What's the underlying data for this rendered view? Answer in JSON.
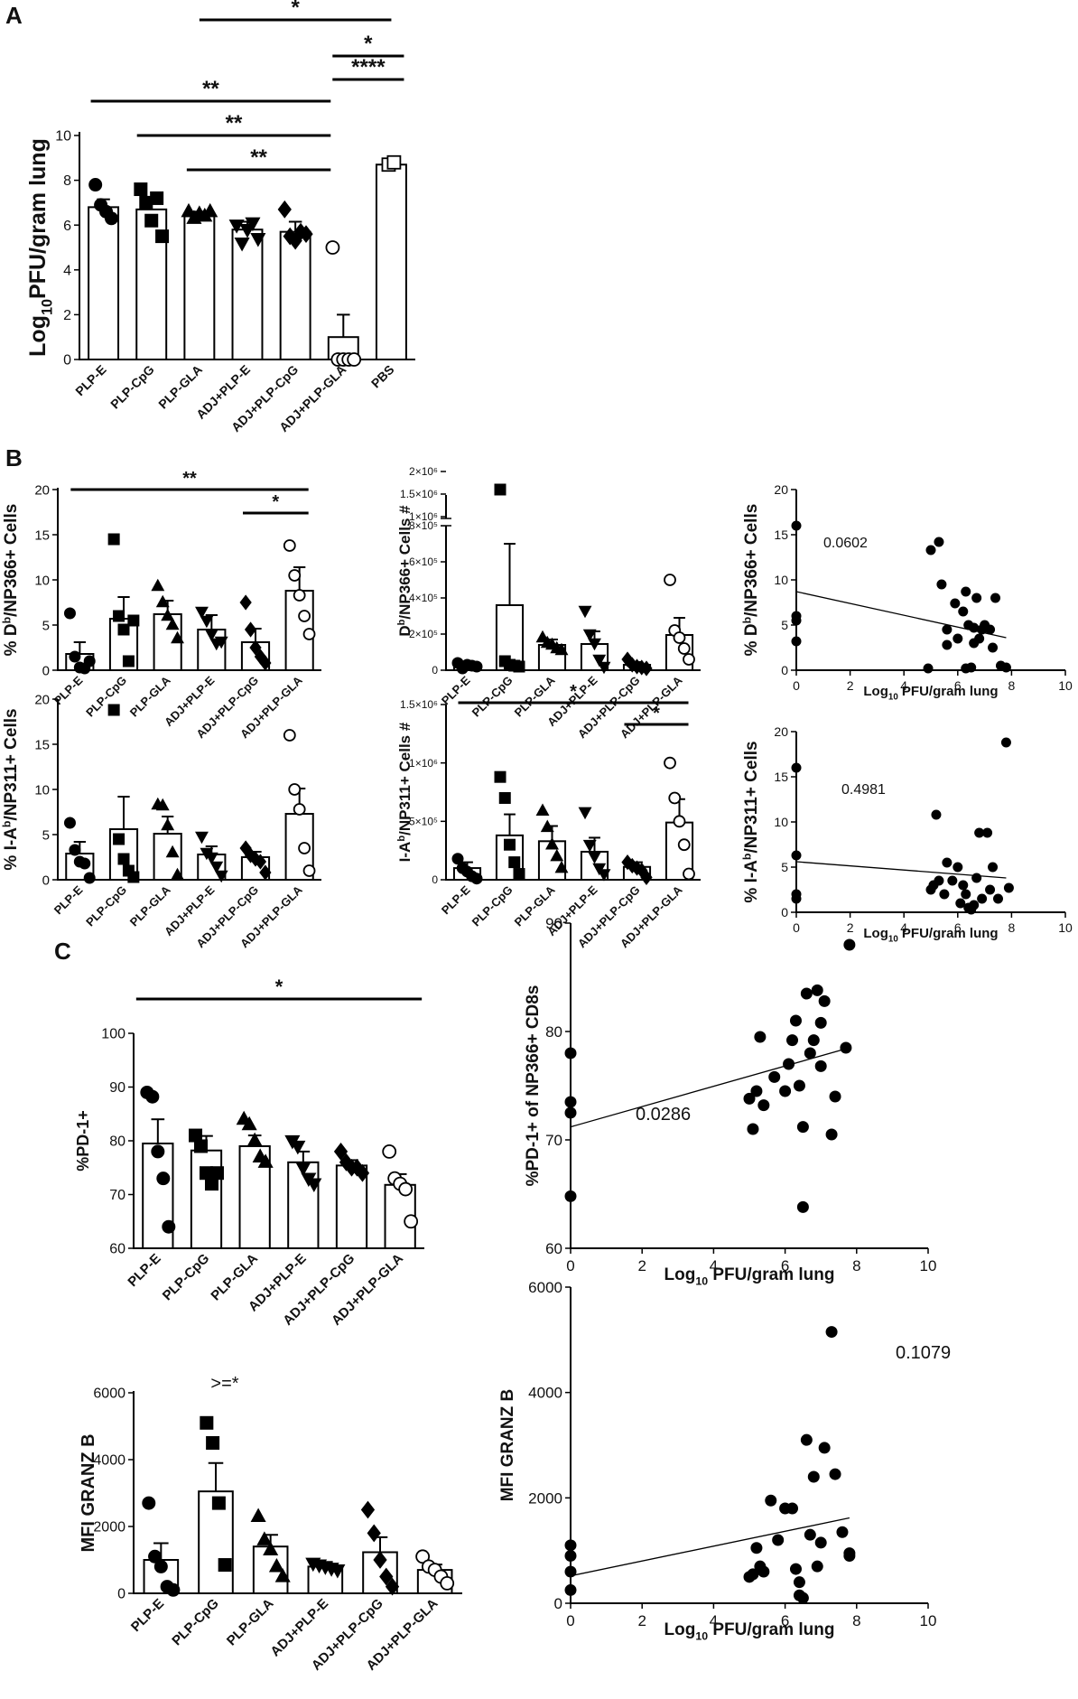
{
  "panel_labels": {
    "A": "A",
    "B": "B",
    "C": "C"
  },
  "chart_data": [
    {
      "id": "A",
      "type": "bar",
      "ylabel_main": "Log",
      "ylabel_sub": "10",
      "ylabel_tail": "PFU/gram lung",
      "ylim": [
        0,
        10
      ],
      "yticks": [
        0,
        2,
        4,
        6,
        8,
        10
      ],
      "categories": [
        "PLP-E",
        "PLP-CpG",
        "PLP-GLA",
        "ADJ+PLP-E",
        "ADJ+PLP-CpG",
        "ADJ+PLP-GLA",
        "PBS"
      ],
      "values": [
        6.8,
        6.7,
        6.4,
        5.8,
        5.7,
        1.0,
        8.7
      ],
      "sem": [
        0.35,
        0.5,
        0.2,
        0.35,
        0.45,
        1.0,
        0.15
      ],
      "marker": [
        "circle",
        "square",
        "triangle-up",
        "triangle-down",
        "diamond",
        "circle-open",
        "square-open"
      ],
      "points": [
        [
          7.8,
          6.9,
          6.6,
          6.3
        ],
        [
          7.6,
          7.0,
          6.2,
          7.2,
          5.5
        ],
        [
          6.6,
          6.3,
          6.5,
          6.4,
          6.6
        ],
        [
          6.0,
          5.2,
          5.8,
          6.1,
          5.4
        ],
        [
          6.7,
          5.5,
          5.3,
          5.7,
          5.6
        ],
        [
          5.0,
          0.0,
          0.0,
          0.0,
          0.0
        ],
        [
          8.7,
          8.8
        ]
      ],
      "significance": [
        {
          "from": 2,
          "to": 6,
          "label": "*"
        },
        {
          "from": 5,
          "to": 6,
          "label": "*"
        },
        {
          "from": 5,
          "to": 6,
          "label": "****"
        },
        {
          "from": 0,
          "to": 5,
          "label": "**"
        },
        {
          "from": 1,
          "to": 5,
          "label": "**"
        },
        {
          "from": 2,
          "to": 5,
          "label": "**"
        }
      ]
    },
    {
      "id": "B1",
      "type": "bar",
      "ylabel_main": "% D",
      "ylabel_sup": "b",
      "ylabel_tail": "/NP366+ Cells",
      "ylim": [
        0,
        20
      ],
      "yticks": [
        0,
        5,
        10,
        15,
        20
      ],
      "categories": [
        "PLP-E",
        "PLP-CpG",
        "PLP-GLA",
        "ADJ+PLP-E",
        "ADJ+PLP-CpG",
        "ADJ+PLP-GLA"
      ],
      "values": [
        1.8,
        5.7,
        6.2,
        4.5,
        3.1,
        8.8
      ],
      "sem": [
        1.3,
        2.4,
        1.5,
        1.6,
        1.5,
        2.6
      ],
      "marker": [
        "circle",
        "square",
        "triangle-up",
        "triangle-down",
        "diamond",
        "circle-open"
      ],
      "points": [
        [
          6.3,
          1.5,
          0.3,
          0.2,
          1.0
        ],
        [
          14.5,
          6.0,
          4.5,
          1.0,
          5.5
        ],
        [
          9.3,
          7.5,
          6.0,
          5.0,
          3.5
        ],
        [
          6.5,
          5.5,
          4.0,
          3.0,
          3.2
        ],
        [
          7.5,
          4.5,
          2.5,
          1.5,
          0.8
        ],
        [
          13.8,
          10.5,
          8.3,
          6.0,
          4.0
        ]
      ],
      "significance": [
        {
          "from": 0,
          "to": 5,
          "label": "**"
        },
        {
          "from": 4,
          "to": 5,
          "label": "*"
        }
      ]
    },
    {
      "id": "B2",
      "type": "bar",
      "ylabel_main": "% I-A",
      "ylabel_sup": "b",
      "ylabel_tail": "/NP311+ Cells",
      "ylim": [
        0,
        20
      ],
      "yticks": [
        0,
        5,
        10,
        15,
        20
      ],
      "categories": [
        "PLP-E",
        "PLP-CpG",
        "PLP-GLA",
        "ADJ+PLP-E",
        "ADJ+PLP-CpG",
        "ADJ+PLP-GLA"
      ],
      "values": [
        2.9,
        5.6,
        5.1,
        2.8,
        2.5,
        7.3
      ],
      "sem": [
        1.3,
        3.6,
        1.9,
        0.9,
        0.6,
        2.8
      ],
      "marker": [
        "circle",
        "square",
        "triangle-up",
        "triangle-down",
        "diamond",
        "circle-open"
      ],
      "points": [
        [
          6.3,
          3.3,
          2.0,
          1.8,
          0.2
        ],
        [
          18.8,
          4.5,
          2.3,
          1.0,
          0.3
        ],
        [
          8.3,
          8.2,
          6.0,
          3.0,
          0.5
        ],
        [
          4.8,
          3.0,
          2.5,
          1.5,
          0.5
        ],
        [
          3.5,
          2.7,
          2.3,
          2.0,
          0.8
        ],
        [
          16.0,
          10.0,
          7.8,
          3.5,
          1.0
        ]
      ],
      "significance": []
    },
    {
      "id": "B3",
      "type": "bar",
      "ylabel_main": "D",
      "ylabel_sup": "b",
      "ylabel_tail": "/NP366+ Cells #",
      "yticks_labels": [
        "0",
        "2×10⁵",
        "4×10⁵",
        "6×10⁵",
        "8×10⁵",
        "1×10⁶",
        "1.5×10⁶",
        "2×10⁶"
      ],
      "broken_axis": true,
      "categories": [
        "PLP-E",
        "PLP-CpG",
        "PLP-GLA",
        "ADJ+PLP-E",
        "ADJ+PLP-CpG",
        "ADJ+PLP-GLA"
      ],
      "values": [
        25000,
        360000,
        140000,
        145000,
        30000,
        195000
      ],
      "sem": [
        15000,
        340000,
        30000,
        70000,
        15000,
        95000
      ],
      "marker": [
        "circle",
        "square",
        "triangle-up",
        "triangle-down",
        "diamond",
        "circle-open"
      ],
      "points": [
        [
          40000,
          10000,
          30000,
          25000,
          20000
        ],
        [
          1600000,
          50000,
          30000,
          25000,
          20000
        ],
        [
          180000,
          150000,
          140000,
          120000,
          110000
        ],
        [
          330000,
          200000,
          150000,
          60000,
          20000
        ],
        [
          60000,
          30000,
          20000,
          15000,
          10000
        ],
        [
          500000,
          220000,
          180000,
          120000,
          60000
        ]
      ],
      "significance": []
    },
    {
      "id": "B4",
      "type": "bar",
      "ylabel_main": "I-A",
      "ylabel_sup": "b",
      "ylabel_tail": "/NP311+ Cells #",
      "ylim": [
        0,
        1500000
      ],
      "yticks": [
        0,
        500000,
        1000000,
        1500000
      ],
      "ytick_labels": [
        "0",
        "5×10⁵",
        "1×10⁶",
        "1.5×10⁶"
      ],
      "categories": [
        "PLP-E",
        "PLP-CpG",
        "PLP-GLA",
        "ADJ+PLP-E",
        "ADJ+PLP-CpG",
        "ADJ+PLP-GLA"
      ],
      "values": [
        100000,
        380000,
        330000,
        240000,
        110000,
        490000
      ],
      "sem": [
        50000,
        180000,
        130000,
        120000,
        40000,
        200000
      ],
      "marker": [
        "circle",
        "square",
        "triangle-up",
        "triangle-down",
        "diamond",
        "circle-open"
      ],
      "points": [
        [
          180000,
          100000,
          70000,
          30000,
          10000
        ],
        [
          880000,
          700000,
          300000,
          150000,
          50000
        ],
        [
          590000,
          450000,
          300000,
          200000,
          100000
        ],
        [
          580000,
          300000,
          200000,
          100000,
          50000
        ],
        [
          150000,
          120000,
          100000,
          80000,
          20000
        ],
        [
          1000000,
          700000,
          500000,
          300000,
          50000
        ]
      ],
      "significance": [
        {
          "from": 0,
          "to": 5,
          "label": "*"
        },
        {
          "from": 4,
          "to": 5,
          "label": "*"
        }
      ]
    },
    {
      "id": "B5",
      "type": "scatter",
      "ylabel_main": "% D",
      "ylabel_sup": "b",
      "ylabel_tail": "/NP366+ Cells",
      "xlabel_main": "Log",
      "xlabel_sub": "10",
      "xlabel_tail": " PFU/gram lung",
      "xlim": [
        0,
        10
      ],
      "ylim": [
        0,
        20
      ],
      "xticks": [
        0,
        2,
        4,
        6,
        8,
        10
      ],
      "yticks": [
        0,
        5,
        10,
        15,
        20
      ],
      "annotation": "0.0602",
      "fit": {
        "x": [
          0,
          7.8
        ],
        "y": [
          8.7,
          3.6
        ]
      },
      "points": [
        [
          0,
          16
        ],
        [
          0,
          6
        ],
        [
          0,
          5.5
        ],
        [
          0,
          3.2
        ],
        [
          5.0,
          13.3
        ],
        [
          5.3,
          14.2
        ],
        [
          5.4,
          9.5
        ],
        [
          5.6,
          4.5
        ],
        [
          5.6,
          2.8
        ],
        [
          5.9,
          7.4
        ],
        [
          6.0,
          3.5
        ],
        [
          6.2,
          6.5
        ],
        [
          6.3,
          8.7
        ],
        [
          6.4,
          5.0
        ],
        [
          6.5,
          0.3
        ],
        [
          6.6,
          4.7
        ],
        [
          6.6,
          3.0
        ],
        [
          6.7,
          8.0
        ],
        [
          6.8,
          3.5
        ],
        [
          6.9,
          4.5
        ],
        [
          7.0,
          5.0
        ],
        [
          7.2,
          4.5
        ],
        [
          7.3,
          2.5
        ],
        [
          7.4,
          8.0
        ],
        [
          7.6,
          0.5
        ],
        [
          7.8,
          0.3
        ],
        [
          4.9,
          0.2
        ],
        [
          6.3,
          0.2
        ]
      ]
    },
    {
      "id": "B6",
      "type": "scatter",
      "ylabel_main": "% I-A",
      "ylabel_sup": "b",
      "ylabel_tail": "/NP311+ Cells",
      "xlabel_main": "Log",
      "xlabel_sub": "10",
      "xlabel_tail": " PFU/gram lung",
      "xlim": [
        0,
        10
      ],
      "ylim": [
        0,
        20
      ],
      "xticks": [
        0,
        2,
        4,
        6,
        8,
        10
      ],
      "yticks": [
        0,
        5,
        10,
        15,
        20
      ],
      "annotation": "0.4981",
      "fit": {
        "x": [
          0,
          7.8
        ],
        "y": [
          5.6,
          3.8
        ]
      },
      "points": [
        [
          0,
          16
        ],
        [
          0,
          6.3
        ],
        [
          0,
          2.0
        ],
        [
          0,
          1.5
        ],
        [
          5.0,
          2.5
        ],
        [
          5.2,
          10.8
        ],
        [
          5.3,
          3.5
        ],
        [
          5.5,
          2.0
        ],
        [
          5.6,
          5.5
        ],
        [
          5.8,
          3.5
        ],
        [
          6.0,
          5.0
        ],
        [
          6.1,
          1.0
        ],
        [
          6.2,
          3.0
        ],
        [
          6.3,
          2.0
        ],
        [
          6.4,
          0.5
        ],
        [
          6.6,
          0.8
        ],
        [
          6.7,
          3.8
        ],
        [
          6.8,
          8.8
        ],
        [
          6.9,
          1.5
        ],
        [
          7.1,
          8.8
        ],
        [
          7.2,
          2.5
        ],
        [
          7.3,
          5.0
        ],
        [
          7.5,
          1.5
        ],
        [
          7.8,
          18.8
        ],
        [
          7.9,
          2.7
        ],
        [
          6.5,
          0.3
        ],
        [
          5.1,
          3.0
        ]
      ]
    },
    {
      "id": "C1",
      "type": "bar",
      "ylabel": "%PD-1+",
      "ylim": [
        60,
        100
      ],
      "yticks": [
        60,
        70,
        80,
        90,
        100
      ],
      "categories": [
        "PLP-E",
        "PLP-CpG",
        "PLP-GLA",
        "ADJ+PLP-E",
        "ADJ+PLP-CpG",
        "ADJ+PLP-GLA"
      ],
      "values": [
        79.5,
        78.2,
        79.0,
        76.0,
        75.4,
        71.8
      ],
      "sem": [
        4.5,
        2.7,
        2.0,
        2.0,
        1.0,
        2.0
      ],
      "marker": [
        "circle",
        "square",
        "triangle-up",
        "triangle-down",
        "diamond",
        "circle-open"
      ],
      "points": [
        [
          89,
          88.2,
          78,
          73,
          64
        ],
        [
          81,
          79,
          74,
          72,
          74
        ],
        [
          84,
          83,
          80,
          77,
          76
        ],
        [
          80,
          79,
          75,
          73,
          72
        ],
        [
          78,
          76,
          75,
          75,
          74
        ],
        [
          78,
          73,
          72,
          71,
          65
        ]
      ],
      "significance": [
        {
          "from": 0,
          "to": 5,
          "label": "*",
          "color": "#3a3a8c"
        }
      ]
    },
    {
      "id": "C2",
      "type": "scatter",
      "ylabel": "%PD-1+ of NP366+ CD8s",
      "xlabel_main": "Log",
      "xlabel_sub": "10",
      "xlabel_tail": " PFU/gram lung",
      "xlim": [
        0,
        10
      ],
      "ylim": [
        60,
        90
      ],
      "xticks": [
        0,
        2,
        4,
        6,
        8,
        10
      ],
      "yticks": [
        60,
        70,
        80,
        90
      ],
      "annotation": "0.0286",
      "fit": {
        "x": [
          0,
          7.8
        ],
        "y": [
          71.2,
          78.5
        ]
      },
      "points": [
        [
          0,
          78
        ],
        [
          0,
          73.5
        ],
        [
          0,
          72.5
        ],
        [
          0,
          64.8
        ],
        [
          5.0,
          73.8
        ],
        [
          5.1,
          71.0
        ],
        [
          5.2,
          74.5
        ],
        [
          5.3,
          79.5
        ],
        [
          5.4,
          73.2
        ],
        [
          5.7,
          75.8
        ],
        [
          6.0,
          74.5
        ],
        [
          6.1,
          77.0
        ],
        [
          6.2,
          79.2
        ],
        [
          6.3,
          81.0
        ],
        [
          6.4,
          75.0
        ],
        [
          6.5,
          71.2
        ],
        [
          6.5,
          63.8
        ],
        [
          6.6,
          83.5
        ],
        [
          6.7,
          78.0
        ],
        [
          6.8,
          79.2
        ],
        [
          6.9,
          83.8
        ],
        [
          7.0,
          80.8
        ],
        [
          7.0,
          76.8
        ],
        [
          7.1,
          82.8
        ],
        [
          7.3,
          70.5
        ],
        [
          7.4,
          74.0
        ],
        [
          7.7,
          78.5
        ],
        [
          7.8,
          88.0
        ]
      ]
    },
    {
      "id": "C3",
      "type": "bar",
      "ylabel": "MFI GRANZ B",
      "ylim": [
        0,
        6000
      ],
      "yticks": [
        0,
        2000,
        4000,
        6000
      ],
      "annotation": ">=*",
      "categories": [
        "PLP-E",
        "PLP-CpG",
        "PLP-GLA",
        "ADJ+PLP-E",
        "ADJ+PLP-CpG",
        "ADJ+PLP-GLA"
      ],
      "values": [
        1000,
        3050,
        1400,
        800,
        1230,
        700
      ],
      "sem": [
        500,
        850,
        350,
        120,
        450,
        160
      ],
      "marker": [
        "circle",
        "square",
        "triangle-up",
        "triangle-down",
        "diamond",
        "circle-open"
      ],
      "points": [
        [
          2700,
          1100,
          800,
          200,
          100
        ],
        [
          5100,
          4500,
          2700,
          850
        ],
        [
          2300,
          1600,
          1300,
          800,
          500
        ],
        [
          900,
          850,
          800,
          750,
          700
        ],
        [
          2500,
          1800,
          1000,
          500,
          200
        ],
        [
          1100,
          800,
          700,
          500,
          300
        ]
      ],
      "significance": []
    },
    {
      "id": "C4",
      "type": "scatter",
      "ylabel": "MFI GRANZ B",
      "xlabel_main": "Log",
      "xlabel_sub": "10",
      "xlabel_tail": " PFU/gram lung",
      "xlim": [
        0,
        10
      ],
      "ylim": [
        0,
        6000
      ],
      "xticks": [
        0,
        2,
        4,
        6,
        8,
        10
      ],
      "yticks": [
        0,
        2000,
        4000,
        6000
      ],
      "annotation": "0.1079",
      "fit": {
        "x": [
          0,
          7.8
        ],
        "y": [
          520,
          1620
        ]
      },
      "points": [
        [
          0,
          1100
        ],
        [
          0,
          900
        ],
        [
          0,
          600
        ],
        [
          0,
          250
        ],
        [
          5.0,
          500
        ],
        [
          5.1,
          550
        ],
        [
          5.2,
          1050
        ],
        [
          5.3,
          700
        ],
        [
          5.4,
          600
        ],
        [
          5.6,
          1950
        ],
        [
          5.8,
          1200
        ],
        [
          6.0,
          1800
        ],
        [
          6.2,
          1800
        ],
        [
          6.3,
          650
        ],
        [
          6.4,
          400
        ],
        [
          6.4,
          150
        ],
        [
          6.5,
          100
        ],
        [
          6.6,
          3100
        ],
        [
          6.7,
          1300
        ],
        [
          6.8,
          2400
        ],
        [
          6.9,
          700
        ],
        [
          7.0,
          1150
        ],
        [
          7.1,
          2950
        ],
        [
          7.3,
          5150
        ],
        [
          7.4,
          2450
        ],
        [
          7.6,
          1350
        ],
        [
          7.8,
          950
        ],
        [
          7.8,
          900
        ]
      ]
    }
  ]
}
